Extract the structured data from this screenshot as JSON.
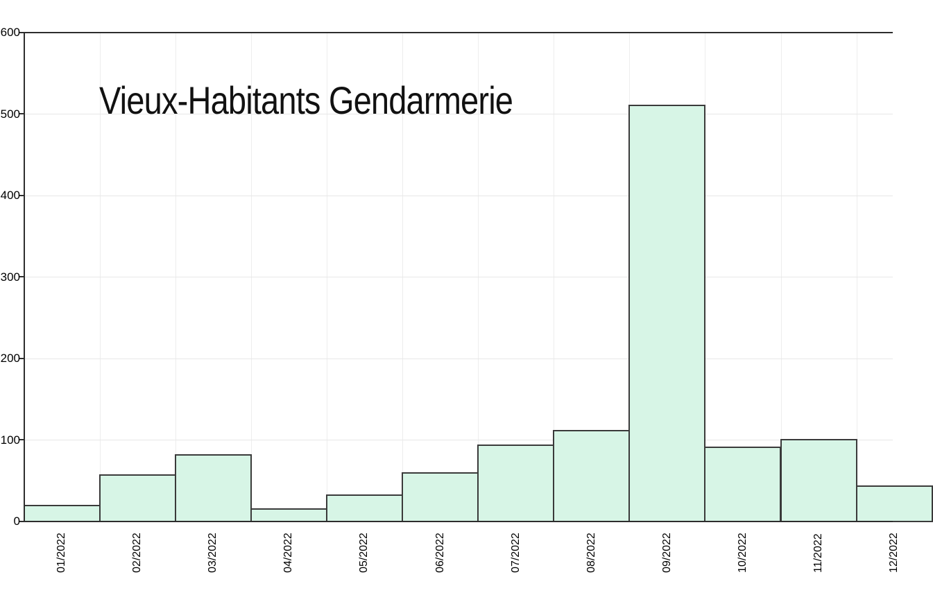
{
  "chart_data": {
    "type": "bar",
    "title": "Vieux-Habitants Gendarmerie",
    "categories": [
      "01/2022",
      "02/2022",
      "03/2022",
      "04/2022",
      "05/2022",
      "06/2022",
      "07/2022",
      "08/2022",
      "09/2022",
      "10/2022",
      "11/2022",
      "12/2022"
    ],
    "values": [
      19,
      57,
      81,
      15,
      32,
      59,
      93,
      111,
      510,
      91,
      100,
      43
    ],
    "xlabel": "",
    "ylabel": "",
    "ylim": [
      0,
      600
    ],
    "ytick_step": 100,
    "yticks": [
      0,
      100,
      200,
      300,
      400,
      500,
      600
    ],
    "grid": true,
    "legend": false,
    "x_tick_label_rotation": "vertical-bottom-to-top",
    "colors": {
      "background": "#ffffff",
      "bar_fill": "#d7f5e6",
      "bar_border": "#3a3a3a",
      "axis": "#2d2d2d",
      "h_gridline": "#e7e7e7",
      "v_gridline": "#ededed",
      "label": "#000000",
      "title": "#111111"
    }
  }
}
